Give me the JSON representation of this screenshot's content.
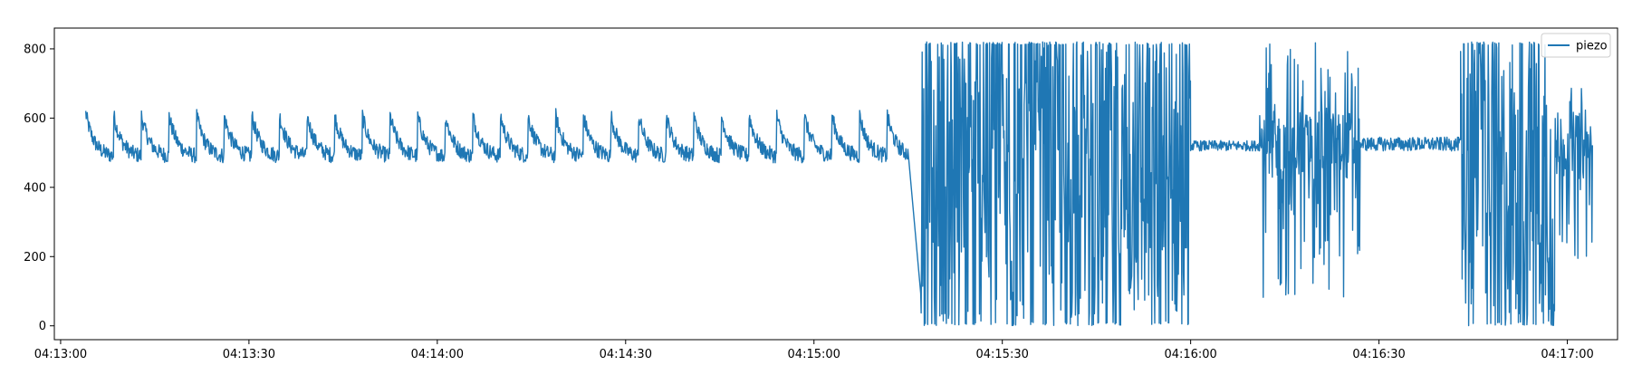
{
  "chart_data": {
    "type": "line",
    "title": "",
    "xlabel": "",
    "ylabel": "",
    "x_axis_type": "time",
    "x_range": [
      "04:12:59",
      "04:17:08"
    ],
    "ylim": [
      -40,
      860
    ],
    "grid": false,
    "legend": {
      "position": "top-right",
      "entries": [
        "piezo"
      ]
    },
    "x_ticks": [
      "04:13:00",
      "04:13:30",
      "04:14:00",
      "04:14:30",
      "04:15:00",
      "04:15:30",
      "04:16:00",
      "04:16:30",
      "04:17:00"
    ],
    "y_ticks": [
      0,
      200,
      400,
      600,
      800
    ],
    "colors": {
      "series": "#1f77b4",
      "axes": "#000000"
    },
    "series": [
      {
        "name": "piezo",
        "start_time": "04:13:04",
        "end_time": "04:17:04",
        "segments": [
          {
            "from": "04:13:04",
            "to": "04:15:15",
            "kind": "periodic",
            "period_s": 4.4,
            "baseline": 530,
            "amplitude": 80,
            "peak_max": 690,
            "trough_min": 440
          },
          {
            "from": "04:15:17",
            "to": "04:16:00",
            "kind": "saturated-noise",
            "min": 0,
            "max": 820
          },
          {
            "from": "04:16:00",
            "to": "04:16:11",
            "kind": "flat-noise",
            "baseline": 520,
            "amplitude": 15
          },
          {
            "from": "04:16:11",
            "to": "04:16:27",
            "kind": "noise",
            "min": 80,
            "max": 820
          },
          {
            "from": "04:16:27",
            "to": "04:16:43",
            "kind": "flat-noise",
            "baseline": 525,
            "amplitude": 20
          },
          {
            "from": "04:16:43",
            "to": "04:16:58",
            "kind": "saturated-noise",
            "min": 0,
            "max": 820
          },
          {
            "from": "04:16:58",
            "to": "04:17:04",
            "kind": "noise",
            "min": 190,
            "max": 690
          }
        ]
      }
    ]
  }
}
